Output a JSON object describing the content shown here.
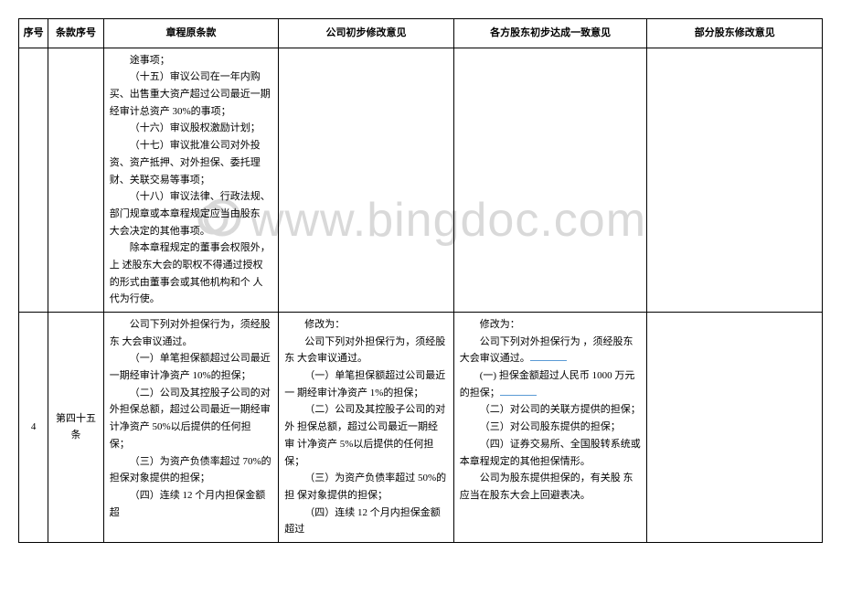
{
  "watermark": "www.bingdoc.com",
  "headers": {
    "seq": "序号",
    "article": "条款序号",
    "original": "章程原条款",
    "company": "公司初步修改意见",
    "shareholders": "各方股东初步达成一致意见",
    "partial": "部分股东修改意见"
  },
  "rows": [
    {
      "seq": "",
      "article": "",
      "original_lines": [
        "途事项；",
        "（十五）审议公司在一年内购买、出售重大资产超过公司最近一期 经审计总资产 30%的事项；",
        "（十六）审议股权激励计划；",
        "（十七）审议批准公司对外投资、资产抵押、对外担保、委托理财、关联交易等事项；",
        "（十八）审议法律、行政法规、部门规章或本章程规定应当由股东 大会决定的其他事项。",
        "除本章程规定的董事会权限外，上 述股东大会的职权不得通过授权 的形式由董事会或其他机构和个 人代为行使。"
      ],
      "company_lines": [],
      "shareholders_lines": [],
      "partial_lines": []
    },
    {
      "seq": "4",
      "article": "第四十五条",
      "original_lines": [
        "公司下列对外担保行为，须经股东 大会审议通过。",
        "（一）单笔担保额超过公司最近一期经审计净资产 10%的担保；",
        "（二）公司及其控股子公司的对外担保总额，超过公司最近一期经审 计净资产 50%以后提供的任何担 保；",
        "（三）为资产负债率超过 70%的担保对象提供的担保；",
        "（四）连续 12 个月内担保金额超"
      ],
      "company_lines": [
        "修改为：",
        "公司下列对外担保行为，须经股东 大会审议通过。",
        "（一）单笔担保额超过公司最近一 期经审计净资产 1%的担保；",
        "（二）公司及其控股子公司的对外 担保总额，超过公司最近一期经审 计净资产 5%以后提供的任何担保；",
        "（三）为资产负债率超过 50%的担 保对象提供的担保；",
        "（四）连续 12 个月内担保金额超过"
      ],
      "shareholders_lines": [
        "修改为：",
        "公司下列对外担保行为 ，须经股东大会审议通过。",
        "(一) 担保金额超过人民币 1000 万元的担保；",
        "（二）对公司的关联方提供的担保；",
        "（三）对公司股东提供的担保；",
        "（四）证券交易所、全国股转系统或 本章程规定的其他担保情形。",
        "公司为股东提供担保的，有关股 东应当在股东大会上回避表决。"
      ],
      "partial_lines": []
    }
  ]
}
